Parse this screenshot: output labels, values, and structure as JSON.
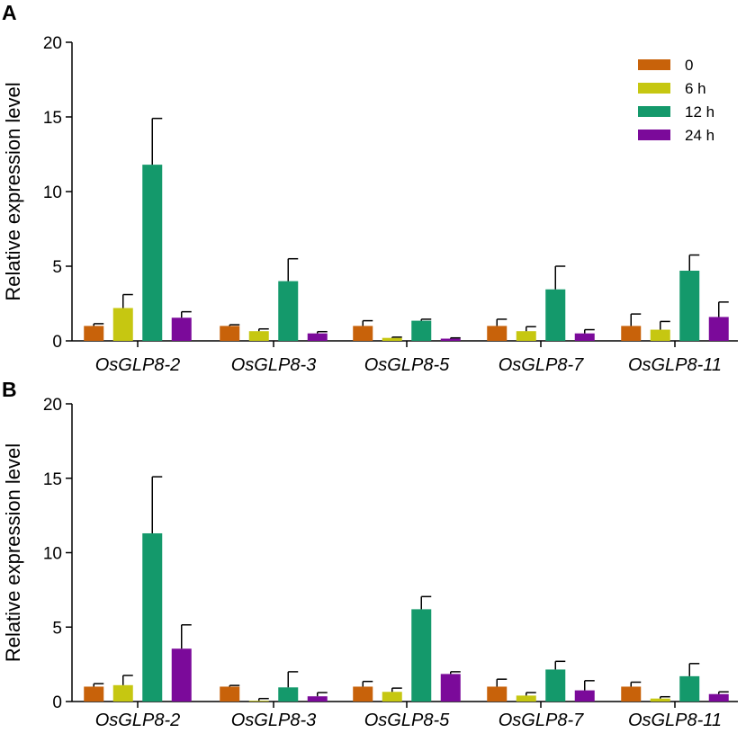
{
  "colors": {
    "0": "#C8620A",
    "6 h": "#C6C711",
    "12 h": "#14996B",
    "24 h": "#7B0A9A"
  },
  "chart_data": [
    {
      "panel": "A",
      "type": "bar",
      "ylabel": "Relative expression level",
      "ylim": [
        0,
        20
      ],
      "yticks": [
        "0",
        "5",
        "10",
        "15",
        "20"
      ],
      "categories": [
        "OsGLP8-2",
        "OsGLP8-3",
        "OsGLP8-5",
        "OsGLP8-7",
        "OsGLP8-11"
      ],
      "legend": [
        "0",
        "6 h",
        "12 h",
        "24 h"
      ],
      "series": [
        {
          "name": "0",
          "values": [
            1.0,
            1.0,
            1.0,
            1.0,
            1.0
          ],
          "errors": [
            0.15,
            0.08,
            0.35,
            0.45,
            0.8
          ]
        },
        {
          "name": "6 h",
          "values": [
            2.2,
            0.65,
            0.2,
            0.65,
            0.75
          ],
          "errors": [
            0.9,
            0.15,
            0.05,
            0.3,
            0.55
          ]
        },
        {
          "name": "12 h",
          "values": [
            11.8,
            4.0,
            1.35,
            3.45,
            4.7
          ],
          "errors": [
            3.1,
            1.5,
            0.1,
            1.55,
            1.05
          ]
        },
        {
          "name": "24 h",
          "values": [
            1.55,
            0.5,
            0.15,
            0.5,
            1.6
          ],
          "errors": [
            0.4,
            0.12,
            0.05,
            0.25,
            1.0
          ]
        }
      ]
    },
    {
      "panel": "B",
      "type": "bar",
      "ylabel": "Relative expression level",
      "ylim": [
        0,
        20
      ],
      "yticks": [
        "0",
        "5",
        "10",
        "15",
        "20"
      ],
      "categories": [
        "OsGLP8-2",
        "OsGLP8-3",
        "OsGLP8-5",
        "OsGLP8-7",
        "OsGLP8-11"
      ],
      "series": [
        {
          "name": "0",
          "values": [
            1.0,
            1.0,
            1.0,
            1.0,
            1.0
          ],
          "errors": [
            0.2,
            0.08,
            0.35,
            0.5,
            0.3
          ]
        },
        {
          "name": "6 h",
          "values": [
            1.1,
            0.05,
            0.65,
            0.4,
            0.2
          ],
          "errors": [
            0.65,
            0.15,
            0.25,
            0.2,
            0.12
          ]
        },
        {
          "name": "12 h",
          "values": [
            11.3,
            0.95,
            6.2,
            2.15,
            1.7
          ],
          "errors": [
            3.8,
            1.05,
            0.85,
            0.55,
            0.85
          ]
        },
        {
          "name": "24 h",
          "values": [
            3.55,
            0.35,
            1.85,
            0.75,
            0.5
          ],
          "errors": [
            1.6,
            0.25,
            0.15,
            0.65,
            0.15
          ]
        }
      ]
    }
  ]
}
